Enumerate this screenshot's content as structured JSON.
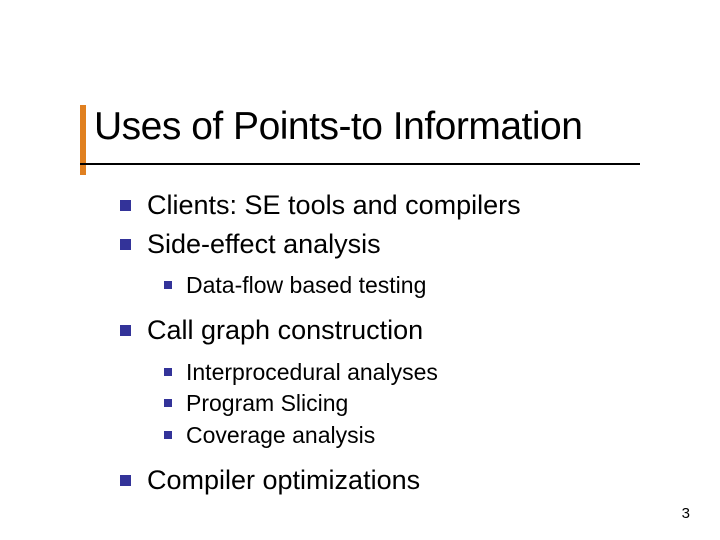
{
  "title": "Uses of Points-to Information",
  "accent_color": "#e08020",
  "bullet_color": "#333399",
  "background_color": "#ffffff",
  "text_color": "#000000",
  "title_fontsize": 39,
  "l1_fontsize": 27,
  "l2_fontsize": 23,
  "l1_bullet_size": 11,
  "l2_bullet_size": 8,
  "items": {
    "i0": "Clients: SE tools and compilers",
    "i1": "Side-effect analysis",
    "i1_sub": {
      "s0": "Data-flow based testing"
    },
    "i2": "Call graph construction",
    "i2_sub": {
      "s0": "Interprocedural analyses",
      "s1": "Program Slicing",
      "s2": "Coverage analysis"
    },
    "i3": "Compiler optimizations"
  },
  "page_number": "3"
}
